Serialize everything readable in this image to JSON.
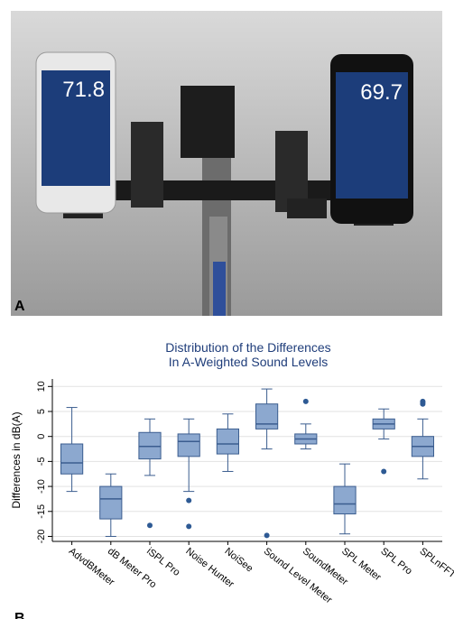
{
  "panel_a": {
    "label": "A",
    "left_reading": "71.8",
    "right_reading": "69.7"
  },
  "panel_b": {
    "label": "B"
  },
  "chart_data": {
    "type": "box",
    "title": [
      "Distribution of the Differences",
      "In A-Weighted Sound Levels"
    ],
    "y_label": "Differences in dB(A)",
    "categories": [
      "AdvdBMeter",
      "dB Meter Pro",
      "iSPL Pro",
      "Noise Hunter",
      "NoiSee",
      "Sound Level Meter",
      "SoundMeter",
      "SPL Meter",
      "SPL Pro",
      "SPLnFFT"
    ],
    "boxes": [
      {
        "low": -11,
        "q1": -7.5,
        "median": -5.3,
        "q3": -1.5,
        "high": 5.8,
        "outliers": []
      },
      {
        "low": -20,
        "q1": -16.5,
        "median": -12.5,
        "q3": -10,
        "high": -7.5,
        "outliers": []
      },
      {
        "low": -7.8,
        "q1": -4.5,
        "median": -2,
        "q3": 0.8,
        "high": 3.5,
        "outliers": [
          -17.8
        ]
      },
      {
        "low": -11,
        "q1": -4,
        "median": -1,
        "q3": 0.5,
        "high": 3.5,
        "outliers": [
          -12.8,
          -18
        ]
      },
      {
        "low": -7,
        "q1": -3.5,
        "median": -1.5,
        "q3": 1.5,
        "high": 4.5,
        "outliers": []
      },
      {
        "low": -2.5,
        "q1": 1.5,
        "median": 2.5,
        "q3": 6.5,
        "high": 9.5,
        "outliers": [
          -19.8
        ]
      },
      {
        "low": -2.5,
        "q1": -1.5,
        "median": -0.5,
        "q3": 0.5,
        "high": 2.5,
        "outliers": [
          7
        ]
      },
      {
        "low": -19.5,
        "q1": -15.5,
        "median": -13.5,
        "q3": -10,
        "high": -5.5,
        "outliers": []
      },
      {
        "low": -0.5,
        "q1": 1.5,
        "median": 2.5,
        "q3": 3.5,
        "high": 5.5,
        "outliers": [
          -7
        ]
      },
      {
        "low": -8.5,
        "q1": -4,
        "median": -2,
        "q3": 0,
        "high": 3.5,
        "outliers": [
          6.5,
          7,
          6.8
        ]
      }
    ],
    "color": "#8ca8cf",
    "ylim": [
      -21,
      11.5
    ],
    "yticks": [
      10,
      5,
      0,
      -5,
      -10,
      -15,
      -20
    ],
    "grid": true
  }
}
